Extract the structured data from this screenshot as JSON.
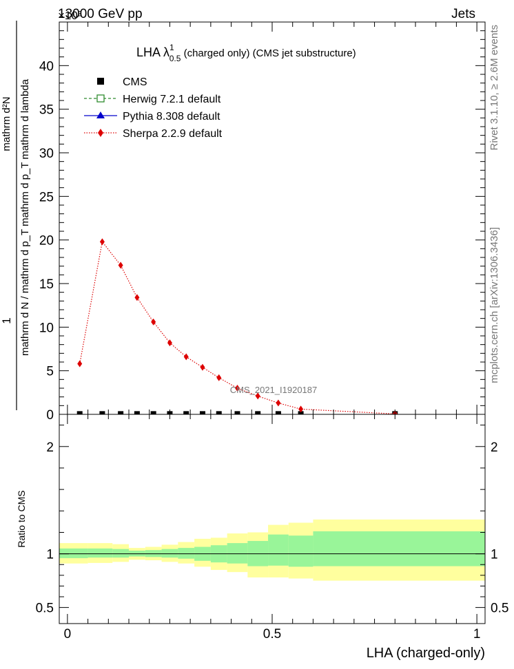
{
  "header": {
    "left": "13000 GeV pp",
    "right": "Jets",
    "exponent": "×10³"
  },
  "title": {
    "main": "LHA λ",
    "sup": "1",
    "sub": "0.5",
    "rest": " (charged only) (CMS jet substructure)"
  },
  "side_labels": {
    "rivet": "Rivet 3.1.10, ≥ 2.6M events",
    "mcplots": "mcplots.cern.ch [arXiv:1306.3436]"
  },
  "watermark": "CMS_2021_I1920187",
  "axes": {
    "ylabel_top_numer": "1",
    "ylabel_top_denom": "mathrm d N / mathrm d p_T mathrm d p_T mathrm d lambda",
    "ylabel_top_frac_numer": "mathrm d²N",
    "ylabel_ratio": "Ratio to CMS",
    "xlabel": "LHA (charged-only)"
  },
  "legend": [
    {
      "key": "cms",
      "label": "CMS",
      "color": "#000000",
      "marker": "filled-square"
    },
    {
      "key": "herwig",
      "label": "Herwig 7.2.1 default",
      "color": "#2e8b2e",
      "marker": "open-square"
    },
    {
      "key": "pythia",
      "label": "Pythia 8.308 default",
      "color": "#0000cc",
      "marker": "triangle"
    },
    {
      "key": "sherpa",
      "label": "Sherpa 2.2.9 default",
      "color": "#dd0000",
      "marker": "diamond"
    }
  ],
  "chart_data": {
    "type": "line",
    "xlim": [
      -0.02,
      1.02
    ],
    "main": {
      "ylim": [
        0,
        45
      ],
      "y_ticks": [
        0,
        5,
        10,
        15,
        20,
        25,
        30,
        35,
        40
      ],
      "y_tick_labels": [
        "0",
        "5",
        "10",
        "15",
        "20",
        "25",
        "30",
        "35",
        "40"
      ],
      "series": [
        {
          "name": "CMS",
          "x": [
            0.03,
            0.085,
            0.13,
            0.17,
            0.21,
            0.25,
            0.29,
            0.33,
            0.37,
            0.415,
            0.465,
            0.515,
            0.57,
            0.8
          ],
          "y": [
            0.05,
            0.05,
            0.05,
            0.05,
            0.05,
            0.05,
            0.05,
            0.05,
            0.05,
            0.05,
            0.05,
            0.05,
            0.05,
            0.05
          ]
        },
        {
          "name": "Sherpa 2.2.9 default",
          "x": [
            0.03,
            0.085,
            0.13,
            0.17,
            0.21,
            0.25,
            0.29,
            0.33,
            0.37,
            0.415,
            0.465,
            0.515,
            0.57,
            0.8
          ],
          "y": [
            5.8,
            19.8,
            17.1,
            13.4,
            10.6,
            8.2,
            6.6,
            5.4,
            4.2,
            3.0,
            2.1,
            1.3,
            0.6,
            0.05
          ]
        }
      ]
    },
    "ratio": {
      "ylim": [
        0.35,
        2.3
      ],
      "y_ticks": [
        0.5,
        1,
        2
      ],
      "y_tick_labels": [
        "0.5",
        "1",
        "2"
      ],
      "bin_edges": [
        -0.02,
        0.05,
        0.11,
        0.15,
        0.19,
        0.23,
        0.27,
        0.31,
        0.35,
        0.39,
        0.44,
        0.49,
        0.54,
        0.6,
        1.02
      ],
      "inner_band_lo": [
        0.96,
        0.965,
        0.965,
        0.975,
        0.97,
        0.965,
        0.955,
        0.935,
        0.92,
        0.91,
        0.885,
        0.89,
        0.88,
        0.885
      ],
      "inner_band_hi": [
        1.05,
        1.05,
        1.045,
        1.03,
        1.035,
        1.045,
        1.055,
        1.065,
        1.08,
        1.1,
        1.12,
        1.18,
        1.17,
        1.21
      ],
      "outer_band_lo": [
        0.91,
        0.915,
        0.925,
        0.945,
        0.94,
        0.925,
        0.91,
        0.88,
        0.85,
        0.83,
        0.78,
        0.78,
        0.77,
        0.75
      ],
      "outer_band_hi": [
        1.1,
        1.1,
        1.09,
        1.055,
        1.065,
        1.085,
        1.11,
        1.14,
        1.15,
        1.19,
        1.2,
        1.27,
        1.29,
        1.32
      ],
      "reference": 1
    },
    "x_ticks": [
      0,
      0.5,
      1
    ],
    "x_tick_labels": [
      "0",
      "0.5",
      "1"
    ],
    "colors": {
      "inner_band": "#99f599",
      "outer_band": "#ffff9e"
    }
  }
}
